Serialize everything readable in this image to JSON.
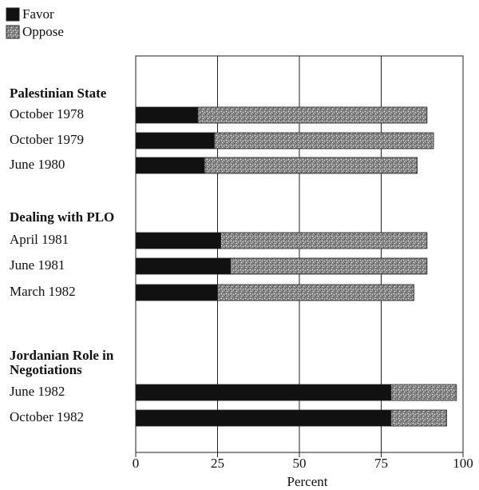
{
  "chart_data": {
    "type": "bar",
    "stacked": true,
    "orientation": "horizontal",
    "groups": [
      {
        "name": "Palestinian State",
        "categories": [
          "October 1978",
          "October 1979",
          "June 1980"
        ]
      },
      {
        "name": "Dealing with PLO",
        "categories": [
          "April 1981",
          "June 1981",
          "March 1982"
        ]
      },
      {
        "name": "Jordanian Role in Negotiations",
        "categories": [
          "June 1982",
          "October 1982"
        ]
      }
    ],
    "series": [
      {
        "name": "Favor",
        "color": "#111111",
        "values": [
          19,
          24,
          21,
          26,
          29,
          25,
          78,
          78
        ]
      },
      {
        "name": "Oppose",
        "color": "#8a8a8a",
        "values": [
          70,
          67,
          65,
          63,
          60,
          60,
          20,
          17
        ]
      }
    ],
    "xlabel": "Percent",
    "xlim": [
      0,
      100
    ],
    "xticks": [
      0,
      25,
      50,
      75,
      100
    ],
    "grid": true,
    "legend": "top-left"
  }
}
